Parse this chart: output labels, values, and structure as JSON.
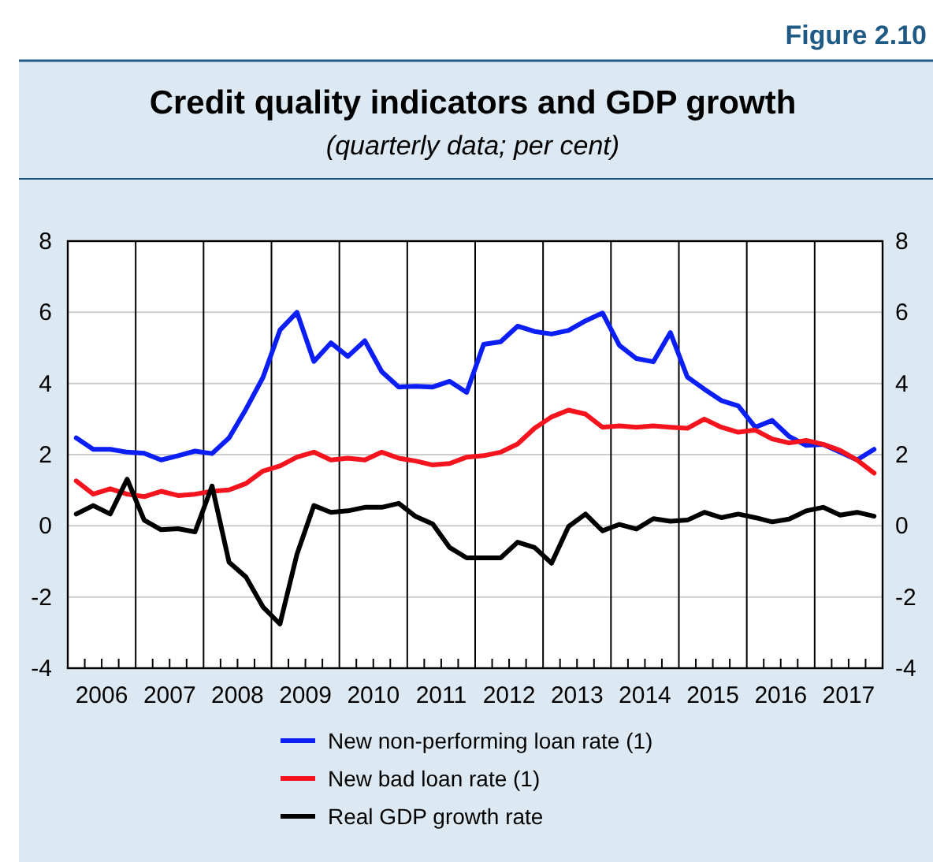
{
  "chart_data": {
    "type": "line",
    "title": "Credit quality indicators and GDP growth",
    "subtitle": "(quarterly data; per cent)",
    "annotations": [
      "Figure 2.10"
    ],
    "x": [
      2006.125,
      2006.375,
      2006.625,
      2006.875,
      2007.125,
      2007.375,
      2007.625,
      2007.875,
      2008.125,
      2008.375,
      2008.625,
      2008.875,
      2009.125,
      2009.375,
      2009.625,
      2009.875,
      2010.125,
      2010.375,
      2010.625,
      2010.875,
      2011.125,
      2011.375,
      2011.625,
      2011.875,
      2012.125,
      2012.375,
      2012.625,
      2012.875,
      2013.125,
      2013.375,
      2013.625,
      2013.875,
      2014.125,
      2014.375,
      2014.625,
      2014.875,
      2015.125,
      2015.375,
      2015.625,
      2015.875,
      2016.125,
      2016.375,
      2016.625,
      2016.875,
      2017.125,
      2017.375,
      2017.625,
      2017.875
    ],
    "series": [
      {
        "name": "New non-performing loan rate (1)",
        "color": "#0a1ef5",
        "values": [
          2.47,
          2.15,
          2.15,
          2.07,
          2.04,
          1.85,
          1.97,
          2.1,
          2.03,
          2.47,
          3.28,
          4.17,
          5.5,
          6.0,
          4.62,
          5.14,
          4.76,
          5.2,
          4.33,
          3.9,
          3.92,
          3.9,
          4.06,
          3.75,
          5.1,
          5.17,
          5.61,
          5.46,
          5.39,
          5.49,
          5.76,
          5.98,
          5.07,
          4.7,
          4.61,
          5.43,
          4.18,
          3.84,
          3.52,
          3.37,
          2.77,
          2.96,
          2.51,
          2.26,
          2.29,
          2.07,
          1.85,
          2.15
        ]
      },
      {
        "name": "New bad loan rate (1)",
        "color": "#f5141e",
        "values": [
          1.26,
          0.89,
          1.04,
          0.89,
          0.82,
          0.97,
          0.85,
          0.89,
          0.97,
          1.01,
          1.19,
          1.54,
          1.68,
          1.93,
          2.07,
          1.85,
          1.9,
          1.85,
          2.07,
          1.9,
          1.82,
          1.71,
          1.75,
          1.93,
          1.97,
          2.07,
          2.3,
          2.74,
          3.06,
          3.25,
          3.14,
          2.77,
          2.81,
          2.77,
          2.81,
          2.77,
          2.74,
          3.0,
          2.77,
          2.63,
          2.69,
          2.44,
          2.33,
          2.4,
          2.29,
          2.12,
          1.85,
          1.48
        ]
      },
      {
        "name": "Real GDP growth rate",
        "color": "#000000",
        "values": [
          0.33,
          0.57,
          0.33,
          1.31,
          0.16,
          -0.11,
          -0.08,
          -0.17,
          1.12,
          -1.02,
          -1.44,
          -2.28,
          -2.76,
          -0.8,
          0.57,
          0.38,
          0.42,
          0.52,
          0.52,
          0.63,
          0.26,
          0.05,
          -0.61,
          -0.9,
          -0.9,
          -0.9,
          -0.46,
          -0.61,
          -1.05,
          -0.02,
          0.33,
          -0.14,
          0.04,
          -0.09,
          0.2,
          0.13,
          0.16,
          0.38,
          0.23,
          0.33,
          0.23,
          0.11,
          0.19,
          0.42,
          0.52,
          0.3,
          0.38,
          0.27
        ]
      }
    ],
    "xlim": [
      2006,
      2018
    ],
    "xticks": [
      {
        "value": 2006.25,
        "label": null
      },
      {
        "value": 2006.5,
        "label": "2006"
      },
      {
        "value": 2006.75,
        "label": null
      },
      {
        "value": 2007.25,
        "label": null
      },
      {
        "value": 2007.5,
        "label": "2007"
      },
      {
        "value": 2007.75,
        "label": null
      },
      {
        "value": 2008.25,
        "label": null
      },
      {
        "value": 2008.5,
        "label": "2008"
      },
      {
        "value": 2008.75,
        "label": null
      },
      {
        "value": 2009.25,
        "label": null
      },
      {
        "value": 2009.5,
        "label": "2009"
      },
      {
        "value": 2009.75,
        "label": null
      },
      {
        "value": 2010.25,
        "label": null
      },
      {
        "value": 2010.5,
        "label": "2010"
      },
      {
        "value": 2010.75,
        "label": null
      },
      {
        "value": 2011.25,
        "label": null
      },
      {
        "value": 2011.5,
        "label": "2011"
      },
      {
        "value": 2011.75,
        "label": null
      },
      {
        "value": 2012.25,
        "label": null
      },
      {
        "value": 2012.5,
        "label": "2012"
      },
      {
        "value": 2012.75,
        "label": null
      },
      {
        "value": 2013.25,
        "label": null
      },
      {
        "value": 2013.5,
        "label": "2013"
      },
      {
        "value": 2013.75,
        "label": null
      },
      {
        "value": 2014.25,
        "label": null
      },
      {
        "value": 2014.5,
        "label": "2014"
      },
      {
        "value": 2014.75,
        "label": null
      },
      {
        "value": 2015.25,
        "label": null
      },
      {
        "value": 2015.5,
        "label": "2015"
      },
      {
        "value": 2015.75,
        "label": null
      },
      {
        "value": 2016.25,
        "label": null
      },
      {
        "value": 2016.5,
        "label": "2016"
      },
      {
        "value": 2016.75,
        "label": null
      },
      {
        "value": 2017.25,
        "label": null
      },
      {
        "value": 2017.5,
        "label": "2017"
      },
      {
        "value": 2017.75,
        "label": null
      }
    ],
    "ylim": [
      -4,
      8
    ],
    "yticks": [
      -4,
      -2,
      0,
      2,
      4,
      6,
      8
    ],
    "y2lim": [
      -4,
      8
    ],
    "y2ticks": [
      -4,
      -2,
      0,
      2,
      4,
      6,
      8
    ],
    "ref_lines": [
      {
        "axis": "x",
        "value": 2007,
        "color": "#000000"
      },
      {
        "axis": "x",
        "value": 2008,
        "color": "#000000"
      },
      {
        "axis": "x",
        "value": 2009,
        "color": "#000000"
      },
      {
        "axis": "x",
        "value": 2010,
        "color": "#000000"
      },
      {
        "axis": "x",
        "value": 2011,
        "color": "#000000"
      },
      {
        "axis": "x",
        "value": 2012,
        "color": "#000000"
      },
      {
        "axis": "x",
        "value": 2013,
        "color": "#000000"
      },
      {
        "axis": "x",
        "value": 2014,
        "color": "#000000"
      },
      {
        "axis": "x",
        "value": 2015,
        "color": "#000000"
      },
      {
        "axis": "x",
        "value": 2016,
        "color": "#000000"
      },
      {
        "axis": "x",
        "value": 2017,
        "color": "#000000"
      }
    ],
    "grid": "y",
    "legend": "bottom",
    "marker": "none",
    "line_style": "solid"
  }
}
